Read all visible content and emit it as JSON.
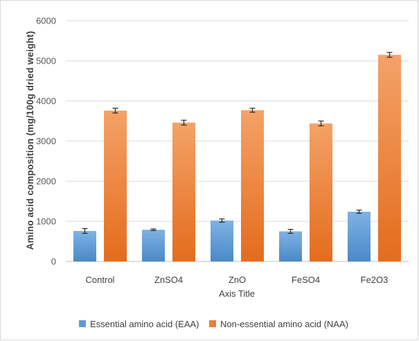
{
  "chart_data": {
    "type": "bar",
    "title": "",
    "xlabel": "Axis Title",
    "ylabel": "Amino acid composition (mg/100g dried weight)",
    "categories": [
      "Control",
      "ZnSO4",
      "ZnO",
      "FeSO4",
      "Fe2O3"
    ],
    "ylim": [
      0,
      6000
    ],
    "yticks": [
      0,
      1000,
      2000,
      3000,
      4000,
      5000,
      6000
    ],
    "grid": true,
    "legend_position": "bottom",
    "series": [
      {
        "name": "Essential amino acid (EAA)",
        "color": "#5b9bd5",
        "values": [
          760,
          790,
          1020,
          750,
          1240
        ],
        "errors": [
          60,
          20,
          40,
          50,
          40
        ]
      },
      {
        "name": "Non-essential amino acid (NAA)",
        "color": "#ed7d31",
        "values": [
          3760,
          3460,
          3770,
          3440,
          5150
        ],
        "errors": [
          60,
          60,
          50,
          60,
          60
        ]
      }
    ]
  }
}
